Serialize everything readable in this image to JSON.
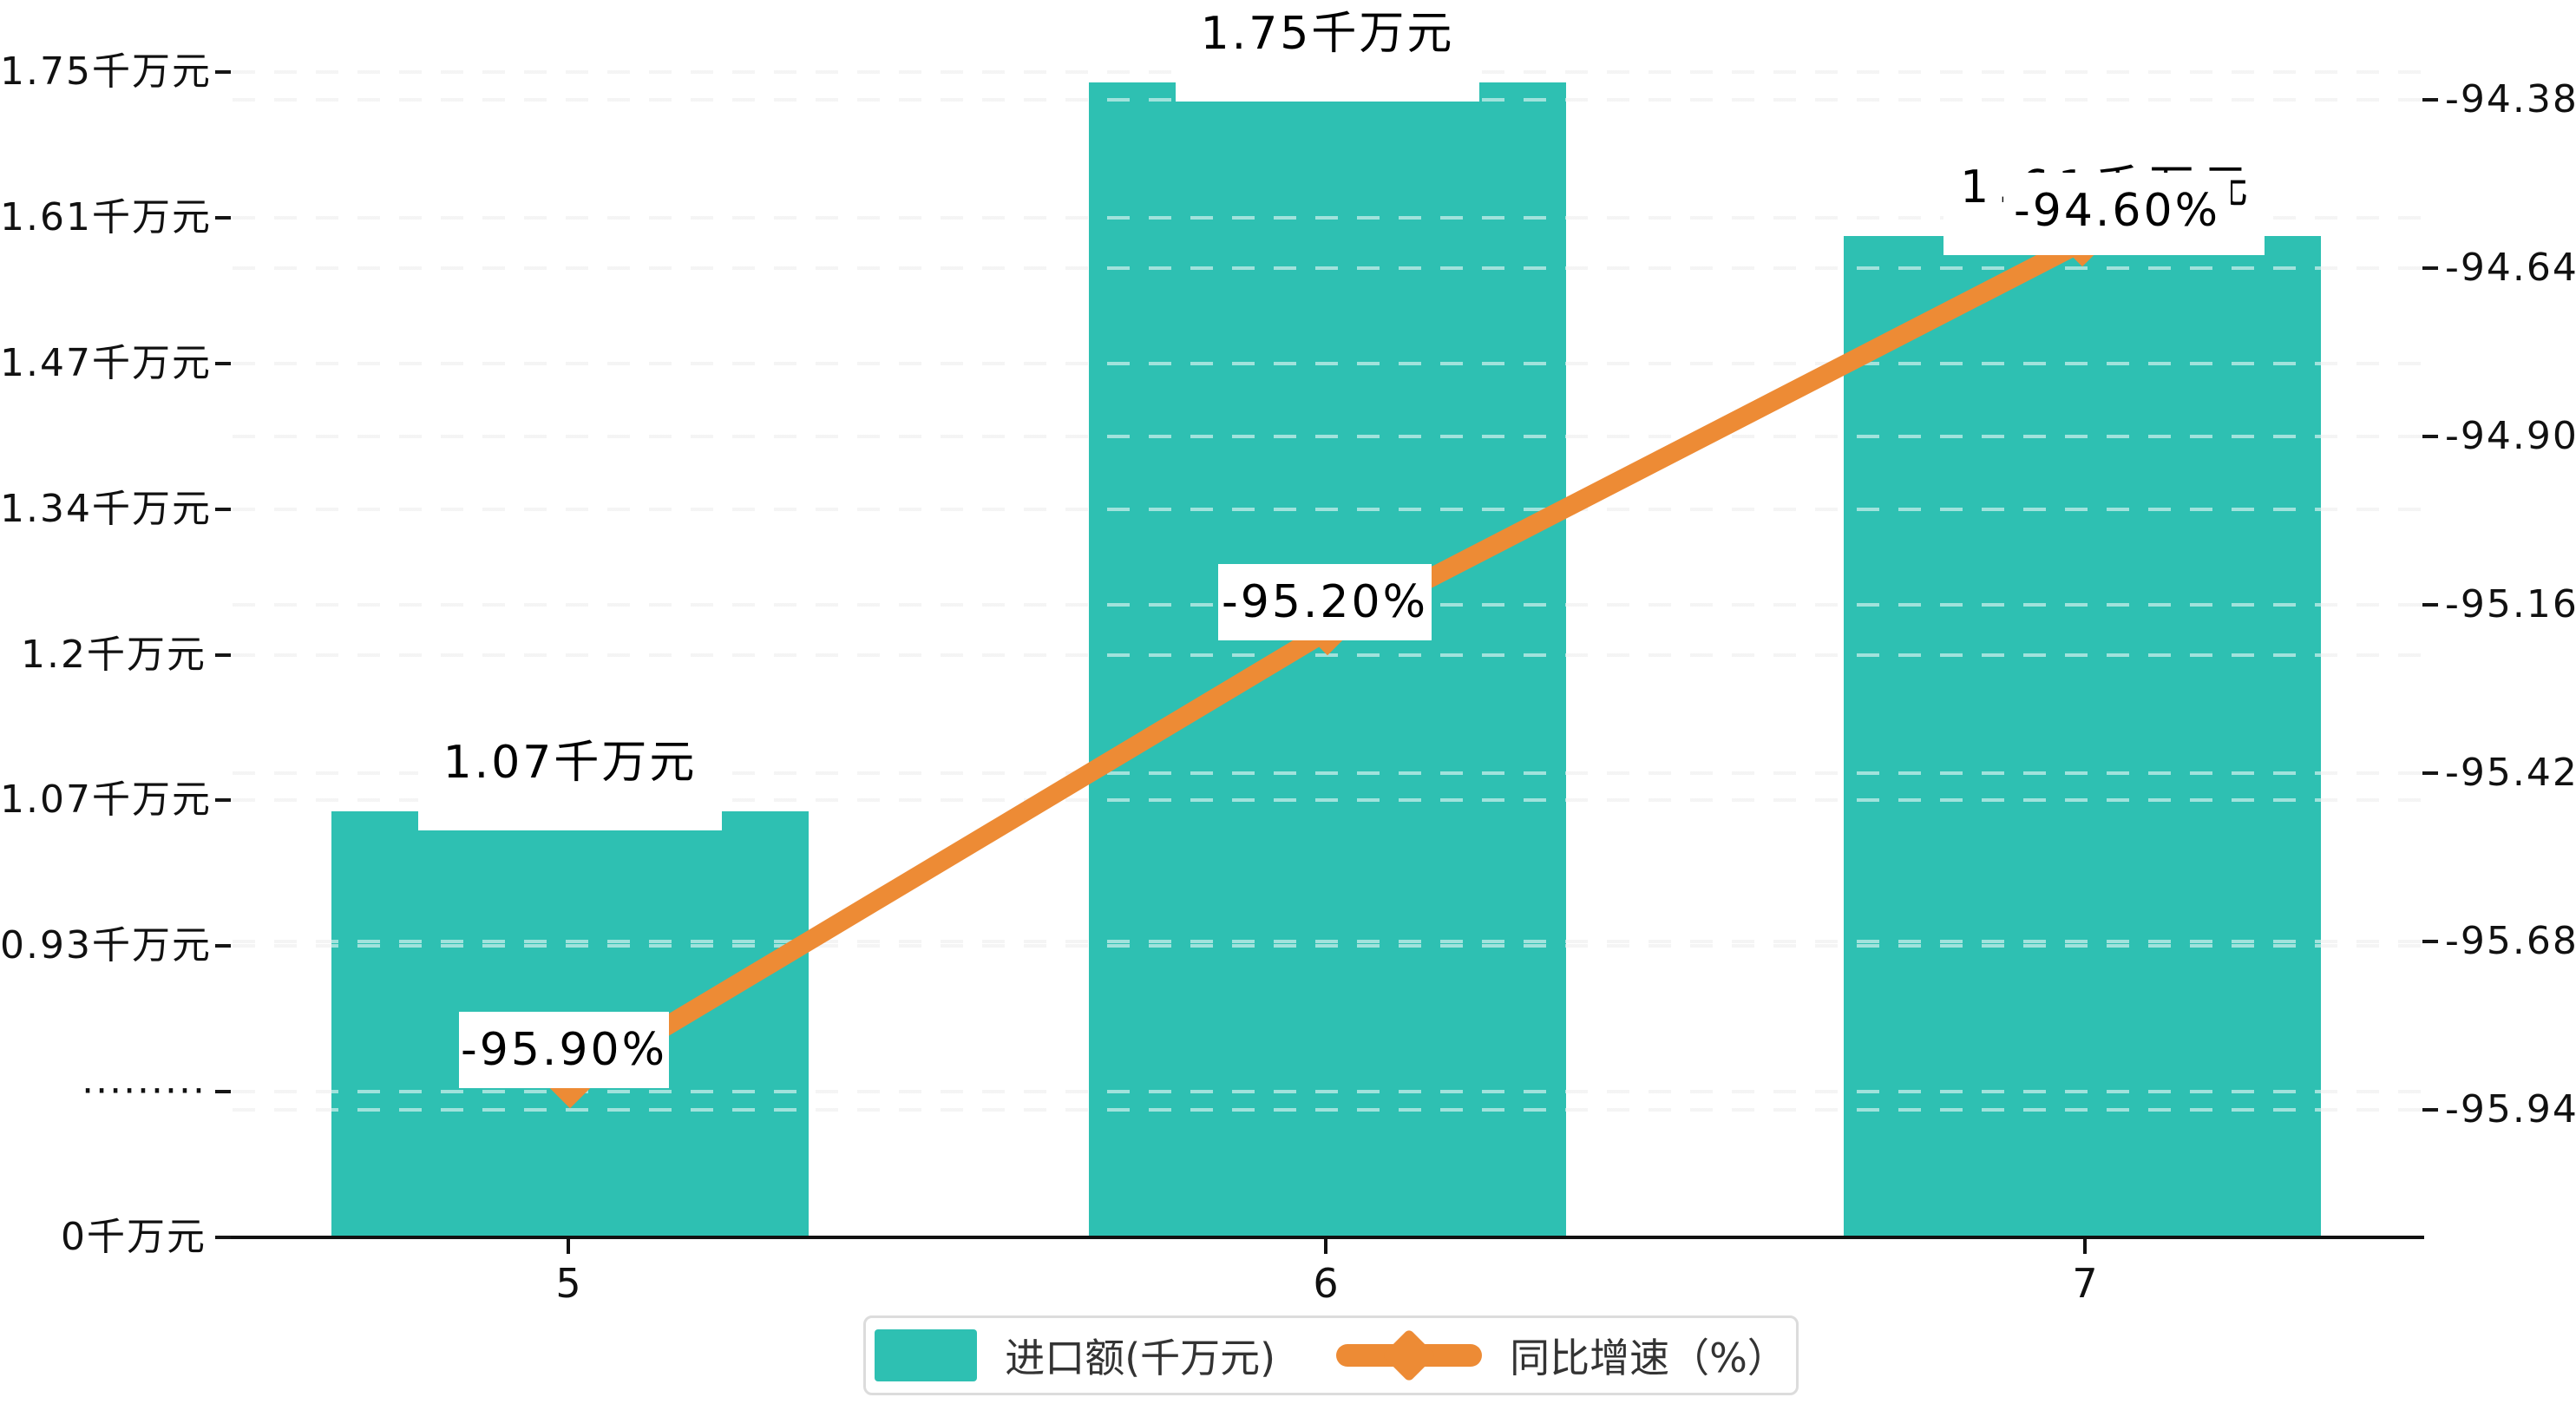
{
  "chart_data": {
    "type": "bar+line combo",
    "categories": [
      "5",
      "6",
      "7"
    ],
    "series": [
      {
        "name": "进口额(千万元)",
        "chart": "bar",
        "axis": "left",
        "color": "#2EC0B2",
        "values": [
          1.07,
          1.75,
          1.61
        ],
        "data_labels": [
          "1.07千万元",
          "1.75千万元",
          "1.61千万元"
        ]
      },
      {
        "name": "同比增速（%）",
        "chart": "line",
        "axis": "right",
        "color": "#ED8B35",
        "values": [
          -95.9,
          -95.2,
          -94.6
        ],
        "data_labels": [
          "-95.90%",
          "-95.20%",
          "-94.60%"
        ]
      }
    ],
    "x_axis": {
      "tick_labels": [
        "5",
        "6",
        "7"
      ]
    },
    "left_axis": {
      "unit": "千万元",
      "tick_labels": [
        "0千万元",
        "·········",
        "0.93千万元",
        "1.07千万元",
        "1.2千万元",
        "1.34千万元",
        "1.47千万元",
        "1.61千万元",
        "1.75千万元"
      ],
      "broken_axis_dotted_tick": "·········"
    },
    "right_axis": {
      "unit": "%",
      "tick_labels": [
        "-94.38",
        "-94.64",
        "-94.90",
        "-95.16",
        "-95.42",
        "-95.68",
        "-95.94"
      ],
      "range": [
        -95.94,
        -94.38
      ]
    },
    "legend": {
      "position": "bottom",
      "items": [
        {
          "label": "进口额(千万元)",
          "marker": "rect",
          "color": "#2EC0B2"
        },
        {
          "label": "同比增速（%）",
          "marker": "line-diamond",
          "color": "#ED8B35"
        }
      ]
    },
    "grid": "dashed horizontal gridlines for both axes",
    "colors": {
      "bar": "#2EC0B2",
      "line": "#ED8B35",
      "gridline": "#e8e8e8",
      "axis": "#111111",
      "label_bg": "#ffffff"
    }
  }
}
